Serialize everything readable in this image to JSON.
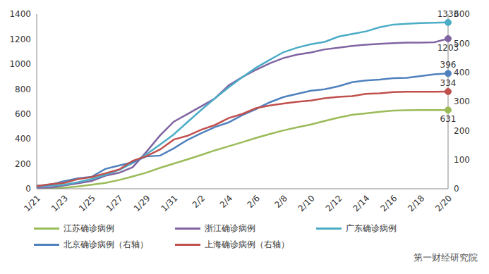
{
  "chart_data": {
    "type": "line",
    "source": "第一财经研究院",
    "categories": [
      "1/21",
      null,
      "1/23",
      null,
      "1/25",
      null,
      "1/27",
      null,
      "1/29",
      null,
      "1/31",
      null,
      "2/2",
      null,
      "2/4",
      null,
      "2/6",
      null,
      "2/8",
      null,
      "2/10",
      null,
      "2/12",
      null,
      "2/14",
      null,
      "2/16",
      null,
      "2/18",
      null,
      "2/20"
    ],
    "ylim": [
      0,
      1400
    ],
    "yticks": [
      0,
      200,
      400,
      600,
      800,
      1000,
      1200,
      1400
    ],
    "y2lim": [
      0,
      600
    ],
    "y2ticks": [
      0,
      100,
      200,
      300,
      400,
      500,
      600
    ],
    "grid": false,
    "legend": "bottom",
    "series": [
      {
        "name": "江苏确诊病例",
        "color": "#9BBB59",
        "axis": "y",
        "values": [
          0,
          1,
          9,
          18,
          33,
          47,
          70,
          99,
          129,
          168,
          202,
          236,
          271,
          308,
          341,
          373,
          408,
          439,
          468,
          492,
          515,
          543,
          570,
          593,
          604,
          617,
          626,
          629,
          631,
          631,
          631
        ]
      },
      {
        "name": "浙江确诊病例",
        "color": "#8064A2",
        "axis": "y",
        "values": [
          5,
          10,
          27,
          43,
          62,
          104,
          128,
          173,
          296,
          428,
          538,
          599,
          661,
          724,
          829,
          895,
          954,
          1006,
          1048,
          1075,
          1092,
          1117,
          1131,
          1145,
          1155,
          1162,
          1167,
          1171,
          1172,
          1174,
          1203
        ]
      },
      {
        "name": "广东确诊病例",
        "color": "#4BACC6",
        "axis": "y",
        "values": [
          17,
          26,
          32,
          53,
          78,
          111,
          151,
          207,
          277,
          354,
          436,
          535,
          632,
          725,
          813,
          895,
          970,
          1034,
          1095,
          1131,
          1159,
          1177,
          1219,
          1241,
          1261,
          1294,
          1316,
          1322,
          1328,
          1331,
          1333
        ]
      },
      {
        "name": "北京确诊病例（右轴）",
        "color": "#4F81BD",
        "axis": "y2",
        "values": [
          10,
          14,
          26,
          36,
          41,
          68,
          80,
          91,
          111,
          114,
          139,
          168,
          191,
          212,
          228,
          253,
          274,
          297,
          315,
          326,
          337,
          342,
          352,
          366,
          372,
          375,
          380,
          381,
          387,
          393,
          396
        ]
      },
      {
        "name": "上海确诊病例（右轴）",
        "color": "#C0504D",
        "axis": "y2",
        "values": [
          9,
          16,
          20,
          33,
          40,
          53,
          66,
          96,
          112,
          135,
          169,
          182,
          203,
          219,
          243,
          257,
          277,
          286,
          293,
          299,
          303,
          311,
          316,
          318,
          326,
          328,
          332,
          333,
          333,
          333,
          334
        ]
      }
    ]
  }
}
